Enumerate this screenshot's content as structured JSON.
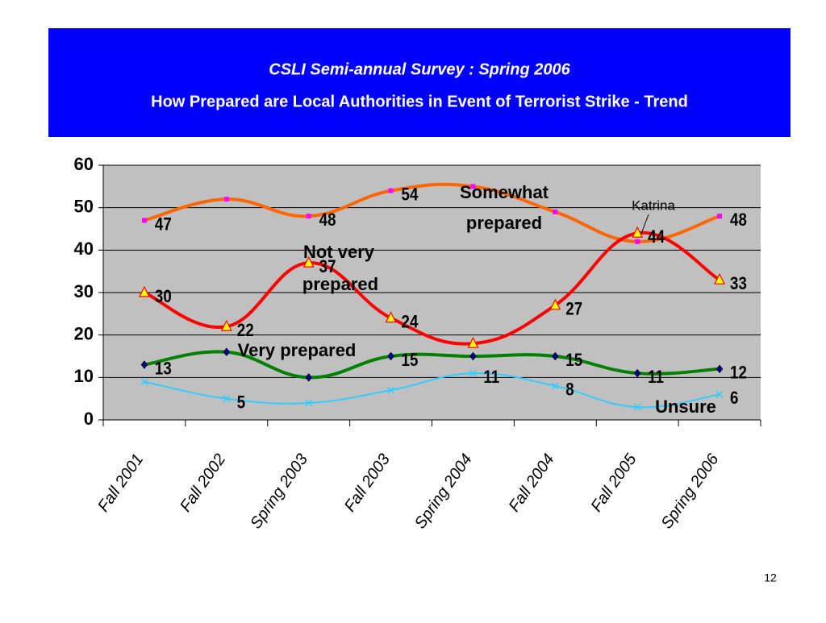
{
  "chart_data": {
    "type": "line",
    "title": "CSLI Semi-annual Survey : Spring 2006",
    "subtitle": "How Prepared are Local Authorities in Event of Terrorist Strike - Trend",
    "categories": [
      "Fall 2001",
      "Fall 2002",
      "Spring 2003",
      "Fall 2003",
      "Spring 2004",
      "Fall 2004",
      "Fall 2005",
      "Spring 2006"
    ],
    "series": [
      {
        "name": "Somewhat prepared",
        "color": "#ff6600",
        "marker": "square",
        "marker_color": "#ff00ff",
        "values": [
          47,
          52,
          48,
          54,
          55,
          49,
          42,
          48
        ],
        "value_labels": [
          "47",
          null,
          "48",
          "54",
          null,
          null,
          null,
          "48"
        ]
      },
      {
        "name": "Not very prepared",
        "color": "#ff0000",
        "marker": "triangle",
        "marker_color": "#ffff00",
        "values": [
          30,
          22,
          37,
          24,
          18,
          27,
          44,
          33
        ],
        "value_labels": [
          "30",
          "22",
          "37",
          "24",
          null,
          "27",
          "44",
          "33"
        ]
      },
      {
        "name": "Very prepared",
        "color": "#008000",
        "marker": "diamond",
        "marker_color": "#000080",
        "values": [
          13,
          16,
          10,
          15,
          15,
          15,
          11,
          12
        ],
        "value_labels": [
          "13",
          null,
          null,
          "15",
          null,
          "15",
          "11",
          "12"
        ]
      },
      {
        "name": "Unsure",
        "color": "#33ccff",
        "marker": "x",
        "marker_color": "#33ccff",
        "values": [
          9,
          5,
          4,
          7,
          11,
          8,
          3,
          6
        ],
        "value_labels": [
          null,
          "5",
          null,
          null,
          "11",
          "8",
          null,
          "6"
        ]
      }
    ],
    "annotations": [
      "Katrina"
    ],
    "page_number": "12",
    "ylim": [
      0,
      60
    ],
    "yticks": [
      0,
      10,
      20,
      30,
      40,
      50,
      60
    ],
    "grid": true
  }
}
